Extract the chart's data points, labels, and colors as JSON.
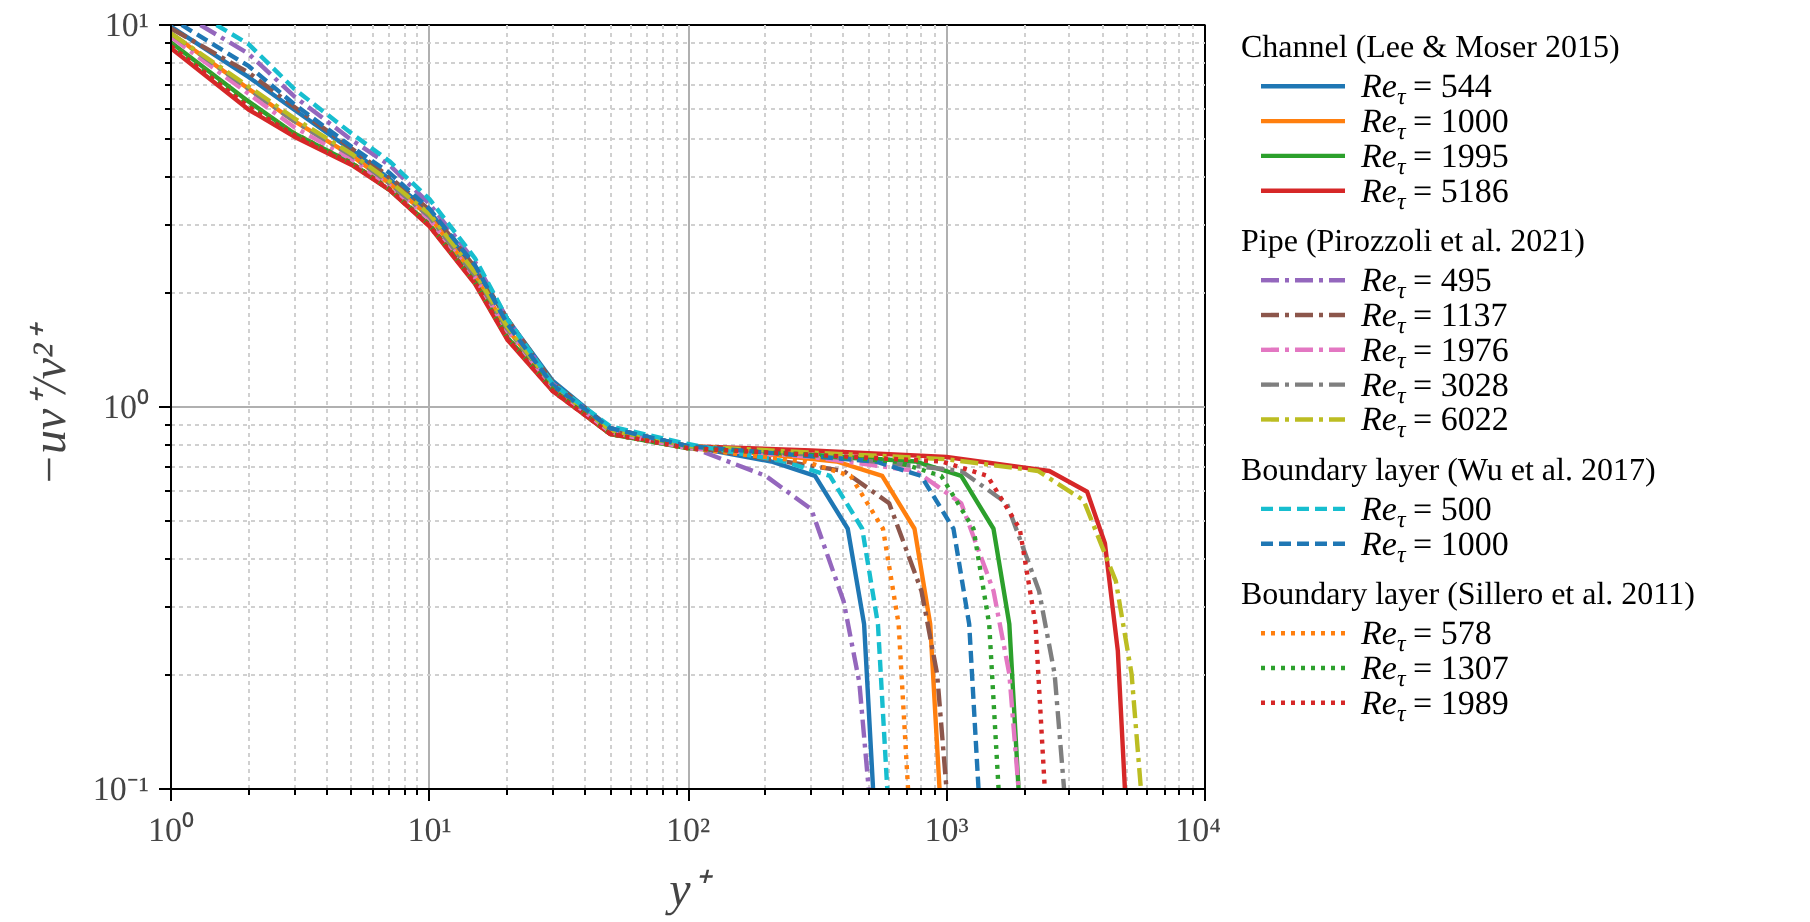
{
  "chart_data": {
    "type": "line",
    "xlabel": "y⁺",
    "ylabel": "−uv⁺/v²⁺",
    "log": "xy",
    "grid": true,
    "legend": "right",
    "xlim": [
      1,
      10000
    ],
    "ylim": [
      0.1,
      10
    ],
    "xticks": [
      {
        "value": 1,
        "label": "10⁰"
      },
      {
        "value": 10,
        "label": "10¹"
      },
      {
        "value": 100,
        "label": "10²"
      },
      {
        "value": 1000,
        "label": "10³"
      },
      {
        "value": 10000,
        "label": "10⁴"
      }
    ],
    "yticks": [
      {
        "value": 0.1,
        "label": "10⁻¹"
      },
      {
        "value": 1,
        "label": "10⁰"
      },
      {
        "value": 10,
        "label": "10¹"
      }
    ],
    "annotations": [
      "Channel (Lee & Moser 2015)",
      "Pipe (Pirozzoli et al. 2021)",
      "Boundary layer (Wu et al. 2017)",
      "Boundary layer (Sillero et al. 2011)"
    ],
    "series": [
      {
        "name": "Re$_{τ}$ = 544",
        "color": "#1f77b4",
        "line_style": "solid",
        "x": [
          1,
          2,
          3,
          5,
          7,
          10,
          15,
          20,
          30,
          50,
          100,
          210,
          310,
          415,
          480,
          520
        ],
        "values": [
          9.9,
          7.3,
          6.0,
          4.7,
          3.95,
          3.25,
          2.3,
          1.7,
          1.17,
          0.88,
          0.79,
          0.72,
          0.66,
          0.48,
          0.27,
          0.1
        ]
      },
      {
        "name": "Re$_{τ}$ = 1000",
        "color": "#ff7f0e",
        "line_style": "solid",
        "x": [
          1,
          2,
          3,
          5,
          7,
          10,
          15,
          20,
          30,
          50,
          100,
          376,
          564,
          752,
          865,
          940
        ],
        "values": [
          9.5,
          6.8,
          5.6,
          4.55,
          3.85,
          3.15,
          2.2,
          1.6,
          1.14,
          0.87,
          0.79,
          0.72,
          0.66,
          0.48,
          0.27,
          0.1
        ]
      },
      {
        "name": "Re$_{τ}$ = 1995",
        "color": "#2ca02c",
        "line_style": "solid",
        "x": [
          1,
          2,
          3,
          5,
          7,
          10,
          15,
          20,
          30,
          50,
          100,
          300,
          760,
          1140,
          1520,
          1750,
          1900
        ],
        "values": [
          9.0,
          6.3,
          5.2,
          4.35,
          3.7,
          3.0,
          2.12,
          1.52,
          1.11,
          0.85,
          0.78,
          0.75,
          0.72,
          0.66,
          0.48,
          0.27,
          0.1
        ]
      },
      {
        "name": "Re$_{τ}$ = 5186",
        "color": "#d62728",
        "line_style": "solid",
        "x": [
          1,
          2,
          3,
          5,
          7,
          10,
          15,
          20,
          30,
          50,
          100,
          300,
          1000,
          2500,
          3500,
          4100,
          4600,
          4900
        ],
        "values": [
          8.7,
          6.0,
          5.1,
          4.3,
          3.7,
          2.97,
          2.1,
          1.5,
          1.1,
          0.85,
          0.79,
          0.77,
          0.74,
          0.68,
          0.6,
          0.44,
          0.23,
          0.1
        ]
      },
      {
        "name": "Re$_{τ}$ = 495",
        "color": "#9467bd",
        "line_style": "dashdot",
        "x": [
          1.3,
          2,
          3,
          5,
          7,
          10,
          15,
          20,
          30,
          50,
          100,
          200,
          300,
          400,
          460,
          500
        ],
        "values": [
          10.0,
          8.4,
          6.5,
          5.0,
          4.3,
          3.4,
          2.4,
          1.7,
          1.15,
          0.88,
          0.79,
          0.66,
          0.54,
          0.31,
          0.19,
          0.1
        ]
      },
      {
        "name": "Re$_{τ}$ = 1137",
        "color": "#8c564b",
        "line_style": "dashdot",
        "x": [
          1,
          2,
          3,
          5,
          7,
          10,
          15,
          20,
          30,
          50,
          100,
          400,
          600,
          800,
          920,
          1000
        ],
        "values": [
          9.8,
          7.5,
          6.1,
          4.75,
          4.0,
          3.28,
          2.32,
          1.7,
          1.16,
          0.88,
          0.79,
          0.68,
          0.56,
          0.33,
          0.2,
          0.1
        ]
      },
      {
        "name": "Re$_{τ}$ = 1976",
        "color": "#e377c2",
        "line_style": "dashdot",
        "x": [
          1,
          2,
          3,
          5,
          7,
          10,
          15,
          20,
          30,
          50,
          100,
          300,
          760,
          1140,
          1520,
          1750,
          1900
        ],
        "values": [
          9.3,
          6.6,
          5.4,
          4.45,
          3.8,
          3.1,
          2.18,
          1.58,
          1.13,
          0.86,
          0.78,
          0.74,
          0.68,
          0.56,
          0.33,
          0.2,
          0.1
        ]
      },
      {
        "name": "Re$_{τ}$ = 3028",
        "color": "#7f7f7f",
        "line_style": "dashdot",
        "x": [
          1,
          2,
          3,
          5,
          7,
          10,
          15,
          20,
          30,
          50,
          100,
          300,
          1140,
          1710,
          2280,
          2620,
          2850
        ],
        "values": [
          9.5,
          6.8,
          5.6,
          4.55,
          3.85,
          3.15,
          2.2,
          1.6,
          1.14,
          0.87,
          0.79,
          0.75,
          0.68,
          0.56,
          0.33,
          0.2,
          0.1
        ]
      },
      {
        "name": "Re$_{τ}$ = 6022",
        "color": "#bcbd22",
        "line_style": "dashdot",
        "x": [
          1,
          2,
          3,
          5,
          7,
          10,
          15,
          20,
          30,
          50,
          100,
          300,
          1000,
          2260,
          3390,
          4520,
          5200,
          5650
        ],
        "values": [
          9.5,
          6.9,
          5.7,
          4.6,
          3.9,
          3.2,
          2.25,
          1.62,
          1.14,
          0.87,
          0.79,
          0.76,
          0.73,
          0.68,
          0.57,
          0.35,
          0.2,
          0.1
        ]
      },
      {
        "name": "Re$_{τ}$ = 500",
        "color": "#17becf",
        "line_style": "dashed",
        "x": [
          1.5,
          2,
          3,
          5,
          7,
          10,
          15,
          20,
          30,
          50,
          100,
          236,
          354,
          472,
          543,
          590
        ],
        "values": [
          10.0,
          8.9,
          6.8,
          5.2,
          4.4,
          3.5,
          2.45,
          1.7,
          1.15,
          0.89,
          0.8,
          0.72,
          0.66,
          0.48,
          0.27,
          0.1
        ]
      },
      {
        "name": "Re$_{τ}$ = 1000",
        "color": "#1f77b4",
        "line_style": "dashed",
        "x": [
          1.1,
          2,
          3,
          5,
          7,
          10,
          15,
          20,
          30,
          50,
          100,
          532,
          798,
          1064,
          1224,
          1330
        ],
        "values": [
          10.0,
          7.8,
          6.2,
          4.8,
          4.1,
          3.3,
          2.35,
          1.65,
          1.14,
          0.88,
          0.79,
          0.72,
          0.66,
          0.48,
          0.27,
          0.1
        ]
      },
      {
        "name": "Re$_{τ}$ = 578",
        "color": "#ff7f0e",
        "line_style": "dotted",
        "x": [
          1,
          2,
          3,
          5,
          7,
          10,
          15,
          20,
          30,
          50,
          100,
          284,
          426,
          568,
          653,
          710
        ],
        "values": [
          8.9,
          6.2,
          5.2,
          4.35,
          3.72,
          3.0,
          2.12,
          1.52,
          1.11,
          0.85,
          0.78,
          0.72,
          0.66,
          0.48,
          0.27,
          0.1
        ]
      },
      {
        "name": "Re$_{τ}$ = 1307",
        "color": "#2ca02c",
        "line_style": "dotted",
        "x": [
          1,
          2,
          3,
          5,
          7,
          10,
          15,
          20,
          30,
          50,
          100,
          300,
          636,
          954,
          1272,
          1463,
          1590
        ],
        "values": [
          8.9,
          6.2,
          5.2,
          4.35,
          3.72,
          3.0,
          2.12,
          1.52,
          1.11,
          0.85,
          0.78,
          0.75,
          0.72,
          0.66,
          0.48,
          0.27,
          0.1
        ]
      },
      {
        "name": "Re$_{τ}$ = 1989",
        "color": "#d62728",
        "line_style": "dotted",
        "x": [
          1,
          2,
          3,
          5,
          7,
          10,
          15,
          20,
          30,
          50,
          100,
          300,
          960,
          1440,
          1920,
          2210,
          2400
        ],
        "values": [
          8.8,
          6.1,
          5.15,
          4.32,
          3.71,
          2.98,
          2.11,
          1.51,
          1.1,
          0.85,
          0.78,
          0.75,
          0.72,
          0.66,
          0.48,
          0.27,
          0.1
        ]
      }
    ]
  }
}
